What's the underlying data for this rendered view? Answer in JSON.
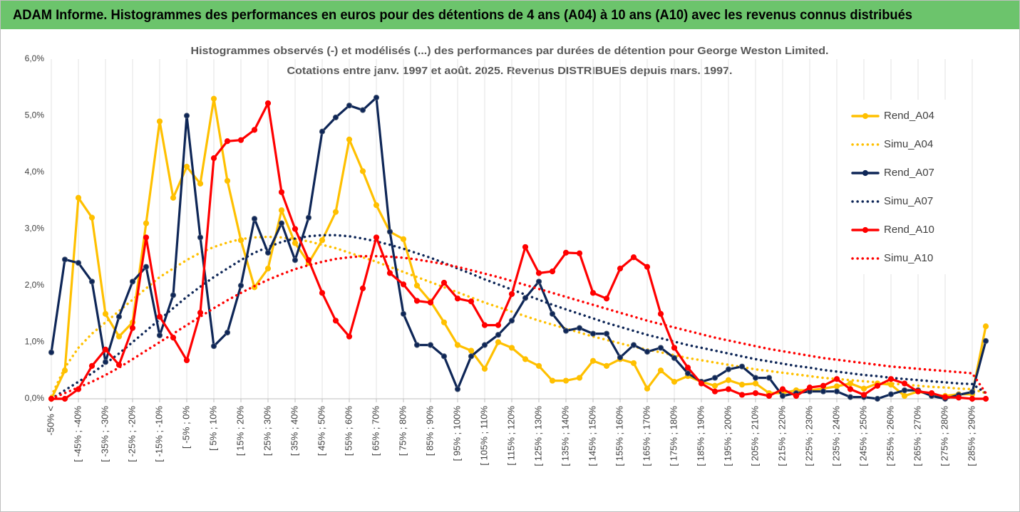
{
  "chart_data": {
    "type": "line",
    "title": "ADAM Informe. Histogrammes des performances en euros pour des détentions de 4 ans (A04) à 10 ans (A10) avec les revenus connus distribués",
    "subtitle": [
      "Histogrammes observés (-) et modélisés (...) des performances par durées de détention pour George Weston Limited.",
      "Cotations entre janv. 1997 et août. 2025. Revenus DISTRIBUES depuis mars. 1997."
    ],
    "categories": [
      "-50% <",
      null,
      "[ -45% ; -40%",
      null,
      "[ -35% ; -30%",
      null,
      "[ -25% ; -20%",
      null,
      "[ -15% ; -10%",
      null,
      "[ -5% ; 0%",
      null,
      "[ 5% ; 10%",
      null,
      "[ 15% ; 20%",
      null,
      "[ 25% ; 30%",
      null,
      "[ 35% ; 40%",
      null,
      "[ 45% ; 50%",
      null,
      "[ 55% ; 60%",
      null,
      "[ 65% ; 70%",
      null,
      "[ 75% ; 80%",
      null,
      "[ 85% ; 90%",
      null,
      "[ 95% ; 100%",
      null,
      "[ 105% ; 110%",
      null,
      "[ 115% ; 120%",
      null,
      "[ 125% ; 130%",
      null,
      "[ 135% ; 140%",
      null,
      "[ 145% ; 150%",
      null,
      "[ 155% ; 160%",
      null,
      "[ 165% ; 170%",
      null,
      "[ 175% ; 180%",
      null,
      "[ 185% ; 190%",
      null,
      "[ 195% ; 200%",
      null,
      "[ 205% ; 210%",
      null,
      "[ 215% ; 220%",
      null,
      "[ 225% ; 230%",
      null,
      "[ 235% ; 240%",
      null,
      "[ 245% ; 250%",
      null,
      "[ 255% ; 260%",
      null,
      "[ 265% ; 270%",
      null,
      "[ 275% ; 280%",
      null,
      "[ 285% ; 290%",
      null
    ],
    "ylim": [
      0,
      6
    ],
    "yticks": [
      {
        "value": 0,
        "label": "0,0%"
      },
      {
        "value": 1,
        "label": "1,0%"
      },
      {
        "value": 2,
        "label": "2,0%"
      },
      {
        "value": 3,
        "label": "3,0%"
      },
      {
        "value": 4,
        "label": "4,0%"
      },
      {
        "value": 5,
        "label": "5,0%"
      },
      {
        "value": 6,
        "label": "6,0%"
      }
    ],
    "grid": "x",
    "legend": "right",
    "series": [
      {
        "name": "Rend_A04",
        "color": "#ffc000",
        "dash": "solid",
        "marker": true,
        "values": [
          0.0,
          0.5,
          3.55,
          3.2,
          1.5,
          1.1,
          1.35,
          3.1,
          4.9,
          3.55,
          4.1,
          3.8,
          5.3,
          3.85,
          2.8,
          1.97,
          2.3,
          3.33,
          2.75,
          2.4,
          2.8,
          3.3,
          4.58,
          4.02,
          3.42,
          2.95,
          2.82,
          2.0,
          1.72,
          1.35,
          0.95,
          0.85,
          0.53,
          1.0,
          0.9,
          0.7,
          0.58,
          0.32,
          0.32,
          0.37,
          0.67,
          0.58,
          0.7,
          0.63,
          0.18,
          0.5,
          0.3,
          0.4,
          0.3,
          0.23,
          0.33,
          0.25,
          0.27,
          0.1,
          0.1,
          0.15,
          0.15,
          0.18,
          0.22,
          0.27,
          0.18,
          0.27,
          0.25,
          0.05,
          0.13,
          0.07,
          0.05,
          0.08,
          0.08,
          1.28
        ]
      },
      {
        "name": "Simu_A04",
        "color": "#ffc000",
        "dash": "dot",
        "marker": false,
        "values": [
          0.05,
          0.55,
          0.9,
          1.15,
          1.35,
          1.55,
          1.75,
          1.95,
          2.15,
          2.3,
          2.45,
          2.58,
          2.68,
          2.76,
          2.82,
          2.85,
          2.86,
          2.85,
          2.82,
          2.78,
          2.72,
          2.66,
          2.58,
          2.5,
          2.42,
          2.33,
          2.24,
          2.15,
          2.06,
          1.97,
          1.88,
          1.79,
          1.7,
          1.62,
          1.54,
          1.46,
          1.38,
          1.31,
          1.24,
          1.17,
          1.1,
          1.04,
          0.98,
          0.92,
          0.87,
          0.82,
          0.77,
          0.72,
          0.68,
          0.64,
          0.6,
          0.56,
          0.52,
          0.49,
          0.46,
          0.43,
          0.4,
          0.37,
          0.35,
          0.33,
          0.31,
          0.29,
          0.27,
          0.25,
          0.23,
          0.21,
          0.2,
          0.18,
          0.17,
          0.1
        ]
      },
      {
        "name": "Rend_A07",
        "color": "#0e2657",
        "dash": "solid",
        "marker": true,
        "values": [
          0.82,
          2.46,
          2.4,
          2.07,
          0.65,
          1.45,
          2.07,
          2.33,
          1.12,
          1.83,
          5.0,
          2.85,
          0.93,
          1.17,
          2.0,
          3.18,
          2.58,
          3.1,
          2.45,
          3.2,
          4.72,
          4.97,
          5.18,
          5.1,
          5.32,
          2.95,
          1.5,
          0.95,
          0.95,
          0.75,
          0.17,
          0.75,
          0.95,
          1.13,
          1.38,
          1.78,
          2.07,
          1.5,
          1.2,
          1.25,
          1.15,
          1.15,
          0.73,
          0.95,
          0.83,
          0.9,
          0.72,
          0.45,
          0.3,
          0.37,
          0.52,
          0.57,
          0.37,
          0.37,
          0.05,
          0.1,
          0.13,
          0.13,
          0.13,
          0.03,
          0.03,
          0.0,
          0.08,
          0.15,
          0.15,
          0.05,
          0.0,
          0.07,
          0.12,
          1.02
        ]
      },
      {
        "name": "Simu_A07",
        "color": "#0e2657",
        "dash": "dot",
        "marker": false,
        "values": [
          0.0,
          0.15,
          0.3,
          0.45,
          0.62,
          0.8,
          1.0,
          1.2,
          1.4,
          1.6,
          1.8,
          1.98,
          2.15,
          2.3,
          2.45,
          2.58,
          2.68,
          2.77,
          2.83,
          2.87,
          2.89,
          2.89,
          2.87,
          2.83,
          2.78,
          2.72,
          2.65,
          2.57,
          2.49,
          2.4,
          2.3,
          2.21,
          2.11,
          2.02,
          1.93,
          1.84,
          1.75,
          1.66,
          1.58,
          1.5,
          1.42,
          1.34,
          1.27,
          1.2,
          1.13,
          1.07,
          1.01,
          0.95,
          0.9,
          0.85,
          0.8,
          0.75,
          0.7,
          0.66,
          0.62,
          0.58,
          0.55,
          0.51,
          0.48,
          0.45,
          0.42,
          0.4,
          0.37,
          0.35,
          0.33,
          0.31,
          0.29,
          0.27,
          0.26,
          0.1
        ]
      },
      {
        "name": "Rend_A10",
        "color": "#ff0000",
        "dash": "solid",
        "marker": true,
        "values": [
          0.0,
          0.0,
          0.17,
          0.58,
          0.87,
          0.6,
          1.25,
          2.85,
          1.45,
          1.08,
          0.68,
          1.52,
          4.25,
          4.55,
          4.57,
          4.75,
          5.22,
          3.65,
          3.0,
          2.45,
          1.87,
          1.38,
          1.1,
          1.95,
          2.85,
          2.22,
          2.02,
          1.73,
          1.7,
          2.05,
          1.77,
          1.72,
          1.3,
          1.3,
          1.85,
          2.68,
          2.22,
          2.25,
          2.58,
          2.57,
          1.87,
          1.77,
          2.3,
          2.5,
          2.33,
          1.5,
          0.9,
          0.55,
          0.27,
          0.13,
          0.17,
          0.07,
          0.1,
          0.05,
          0.17,
          0.05,
          0.2,
          0.23,
          0.35,
          0.17,
          0.07,
          0.23,
          0.35,
          0.27,
          0.13,
          0.1,
          0.03,
          0.02,
          0.0,
          0.0
        ]
      },
      {
        "name": "Simu_A10",
        "color": "#ff0000",
        "dash": "dot",
        "marker": false,
        "values": [
          0.0,
          0.1,
          0.2,
          0.3,
          0.42,
          0.55,
          0.7,
          0.85,
          1.0,
          1.15,
          1.3,
          1.45,
          1.6,
          1.74,
          1.87,
          1.99,
          2.1,
          2.2,
          2.29,
          2.36,
          2.42,
          2.47,
          2.5,
          2.52,
          2.52,
          2.51,
          2.49,
          2.46,
          2.42,
          2.38,
          2.33,
          2.27,
          2.21,
          2.15,
          2.08,
          2.01,
          1.94,
          1.87,
          1.8,
          1.73,
          1.66,
          1.59,
          1.52,
          1.45,
          1.38,
          1.32,
          1.26,
          1.2,
          1.14,
          1.08,
          1.03,
          0.98,
          0.93,
          0.88,
          0.84,
          0.8,
          0.76,
          0.72,
          0.69,
          0.66,
          0.63,
          0.6,
          0.57,
          0.55,
          0.53,
          0.51,
          0.49,
          0.47,
          0.45,
          0.1
        ]
      }
    ]
  }
}
